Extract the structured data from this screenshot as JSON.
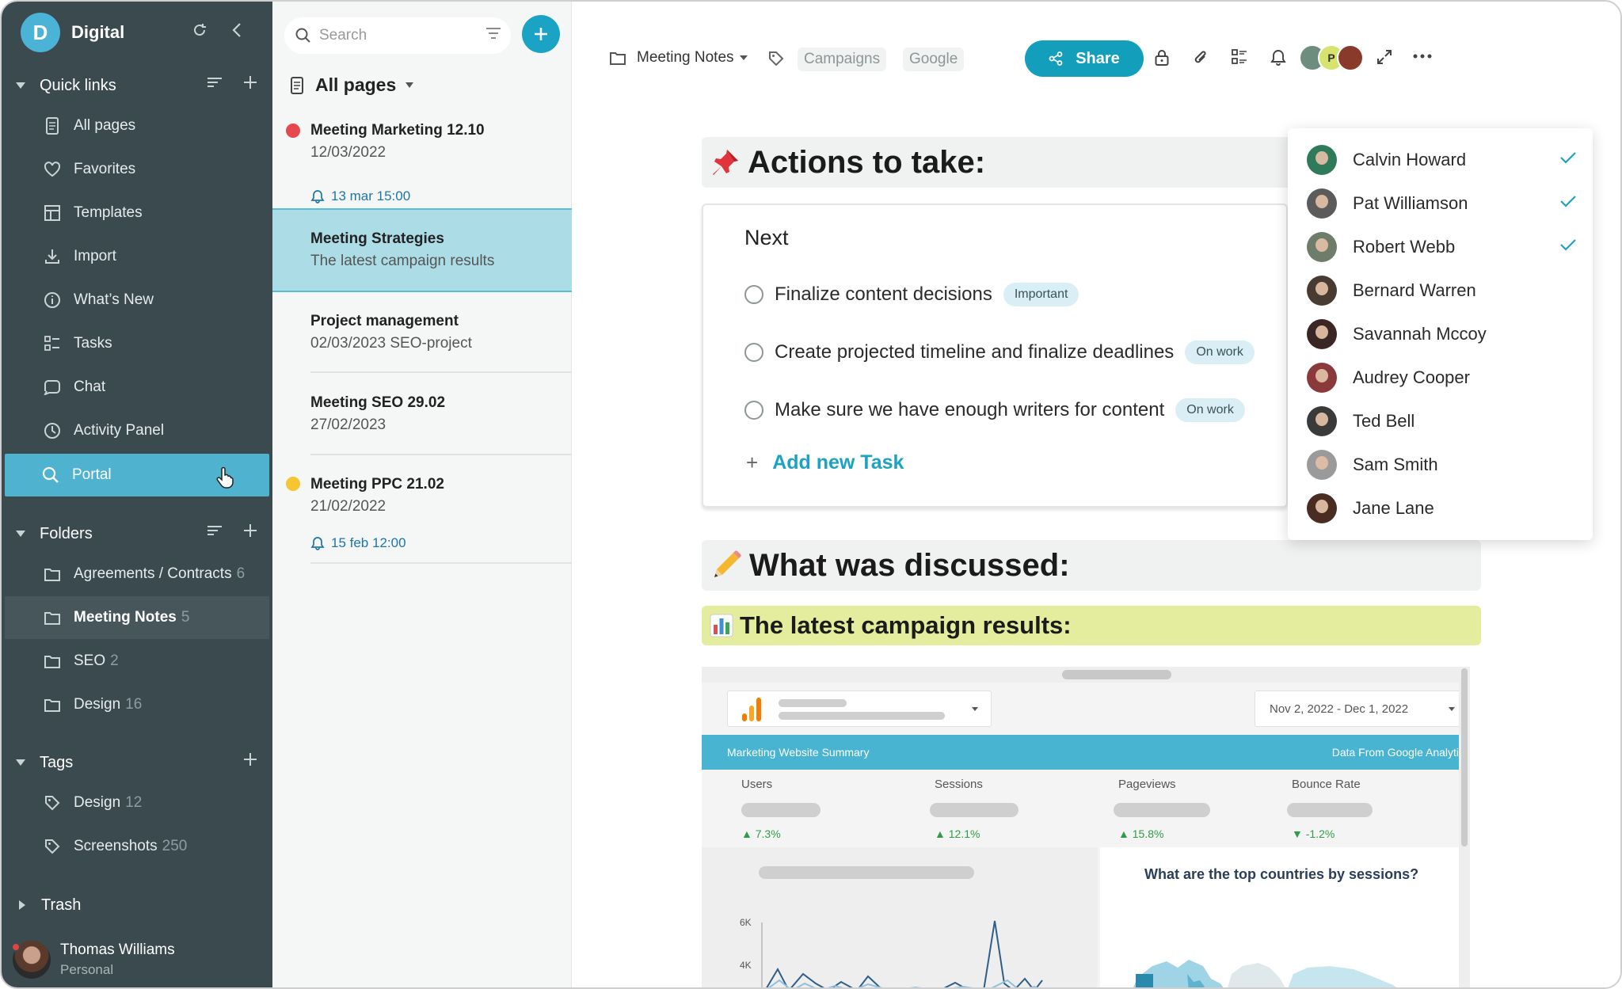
{
  "workspace": {
    "initial": "D",
    "name": "Digital"
  },
  "sidebar": {
    "quick_links_title": "Quick links",
    "quick_links": [
      {
        "label": "All pages",
        "icon": "page-icon"
      },
      {
        "label": "Favorites",
        "icon": "heart-icon"
      },
      {
        "label": "Templates",
        "icon": "template-icon"
      },
      {
        "label": "Import",
        "icon": "download-icon"
      },
      {
        "label": "What’s New",
        "icon": "info-icon"
      },
      {
        "label": "Tasks",
        "icon": "tasks-icon"
      },
      {
        "label": "Chat",
        "icon": "chat-icon"
      },
      {
        "label": "Activity Panel",
        "icon": "clock-icon"
      },
      {
        "label": "Portal",
        "icon": "search-icon"
      }
    ],
    "folders_title": "Folders",
    "folders": [
      {
        "label": "Agreements / Contracts",
        "count": "6"
      },
      {
        "label": "Meeting Notes",
        "count": "5"
      },
      {
        "label": "SEO",
        "count": "2"
      },
      {
        "label": "Design",
        "count": "16"
      }
    ],
    "tags_title": "Tags",
    "tags": [
      {
        "label": "Design",
        "count": "12"
      },
      {
        "label": "Screenshots",
        "count": "250"
      }
    ],
    "trash_label": "Trash",
    "user": {
      "name": "Thomas Williams",
      "plan": "Personal"
    }
  },
  "list": {
    "search_placeholder": "Search",
    "header": "All pages",
    "notes": [
      {
        "title": "Meeting Marketing 12.10",
        "subtitle": "12/03/2022",
        "reminder": "13 mar 15:00",
        "dot_color": "#e5484d"
      },
      {
        "title": "Meeting Strategies",
        "subtitle": "The latest campaign results"
      },
      {
        "title": "Project management",
        "subtitle": "02/03/2023 SEO-project"
      },
      {
        "title": "Meeting SEO 29.02",
        "subtitle": "27/02/2023"
      },
      {
        "title": "Meeting PPC 21.02",
        "subtitle": "21/02/2022",
        "reminder": "15 feb 12:00",
        "dot_color": "#f7c531"
      }
    ]
  },
  "toolbar": {
    "breadcrumb": "Meeting Notes",
    "tags": [
      "Campaigns",
      "Google"
    ],
    "share_label": "Share",
    "avatar_initial": "P"
  },
  "content": {
    "actions_title": "Actions to take:",
    "section_label": "Next",
    "tasks": [
      {
        "text": "Finalize content decisions",
        "badge": "Important"
      },
      {
        "text": "Create projected timeline and finalize deadlines",
        "badge": "On work"
      },
      {
        "text": "Make sure we have enough writers for content",
        "badge": "On work"
      }
    ],
    "add_task_label": "Add new Task",
    "discussed_title": "What was discussed:",
    "campaign_title": "The latest campaign results:"
  },
  "assignees": [
    {
      "name": "Calvin Howard",
      "checked": true,
      "color": "#2f7a5a"
    },
    {
      "name": "Pat Williamson",
      "checked": true,
      "color": "#5b5b5b"
    },
    {
      "name": "Robert Webb",
      "checked": true,
      "color": "#6e7d6a"
    },
    {
      "name": "Bernard Warren",
      "checked": false,
      "color": "#4a3b32"
    },
    {
      "name": "Savannah Mccoy",
      "checked": false,
      "color": "#3a2624"
    },
    {
      "name": "Audrey Cooper",
      "checked": false,
      "color": "#8a3a3a"
    },
    {
      "name": "Ted Bell",
      "checked": false,
      "color": "#3a3a3a"
    },
    {
      "name": "Sam Smith",
      "checked": false,
      "color": "#9a9a9a"
    },
    {
      "name": "Jane Lane",
      "checked": false,
      "color": "#4a2c22"
    }
  ],
  "report": {
    "date_range": "Nov 2, 2022 - Dec 1, 2022",
    "band_left": "Marketing Website Summary",
    "band_right": "Data From Google Analytics",
    "kpis": [
      {
        "label": "Users",
        "change": "7.3%",
        "direction": "up"
      },
      {
        "label": "Sessions",
        "change": "12.1%",
        "direction": "up"
      },
      {
        "label": "Pageviews",
        "change": "15.8%",
        "direction": "up"
      },
      {
        "label": "Bounce Rate",
        "change": "-1.2%",
        "direction": "down"
      }
    ],
    "y_ticks": [
      "6K",
      "4K"
    ],
    "map_title": "What are the top countries by sessions?"
  },
  "colors": {
    "accent": "#139fbc",
    "sidebar": "#3b4a4f",
    "active_nav": "#4fb3cf",
    "highlight_yellow": "#e4ec9e"
  }
}
